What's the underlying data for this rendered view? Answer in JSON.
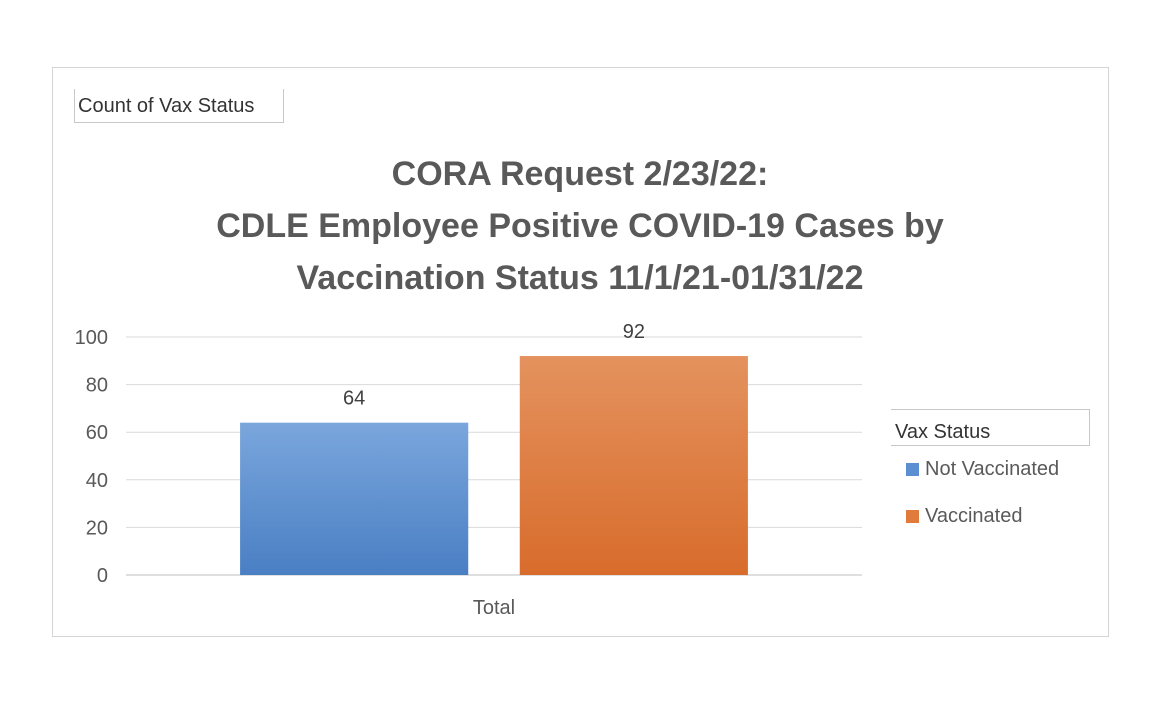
{
  "pivot_field_button": "Count of Vax Status",
  "legend": {
    "title": "Vax Status",
    "position": "right"
  },
  "chart_data": {
    "type": "bar",
    "title_lines": [
      "CORA Request 2/23/22:",
      "CDLE Employee Positive COVID-19 Cases by",
      "Vaccination Status 11/1/21-01/31/22"
    ],
    "categories": [
      "Total"
    ],
    "series": [
      {
        "name": "Not Vaccinated",
        "values": [
          64
        ],
        "color": "#5b8fd1"
      },
      {
        "name": "Vaccinated",
        "values": [
          92
        ],
        "color": "#e07b3b"
      }
    ],
    "ylim": [
      0,
      100
    ],
    "yticks": [
      0,
      20,
      40,
      60,
      80,
      100
    ],
    "data_labels": true,
    "grid": true,
    "legend_position": "right"
  }
}
